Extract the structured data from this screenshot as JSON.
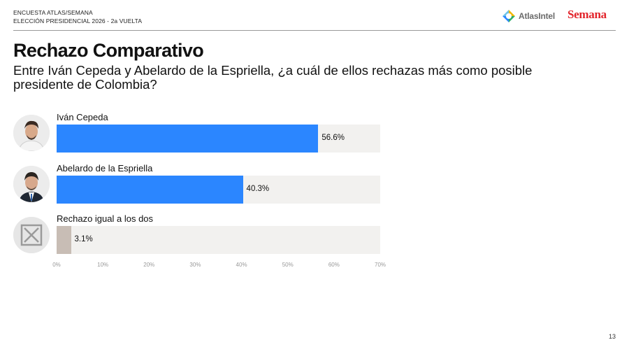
{
  "header": {
    "line1": "ENCUESTA ATLAS/SEMANA",
    "line2": "ELECCIÓN PRESIDENCIAL 2026 - 2a VUELTA",
    "logo_atlas": "AtlasIntel",
    "logo_semana": "Semana"
  },
  "title": "Rechazo Comparativo",
  "subtitle": "Entre Iván Cepeda y Abelardo de la Espriella, ¿a cuál de ellos rechazas más como posible presidente de Colombia?",
  "page_number": "13",
  "colors": {
    "blue": "#2b86ff",
    "tan": "#c8bdb5",
    "track": "#f2f1ef"
  },
  "chart_data": {
    "type": "bar",
    "orientation": "horizontal",
    "categories": [
      "Iván Cepeda",
      "Abelardo de la Espriella",
      "Rechazo igual a los dos"
    ],
    "values": [
      56.6,
      40.3,
      3.1
    ],
    "value_labels": [
      "56.6%",
      "40.3%",
      "3.1%"
    ],
    "bar_colors": [
      "#2b86ff",
      "#2b86ff",
      "#c8bdb5"
    ],
    "xlim": [
      0,
      70
    ],
    "ticks": [
      "0%",
      "10%",
      "20%",
      "30%",
      "40%",
      "50%",
      "60%",
      "70%"
    ],
    "grid": false,
    "legend": "none"
  }
}
